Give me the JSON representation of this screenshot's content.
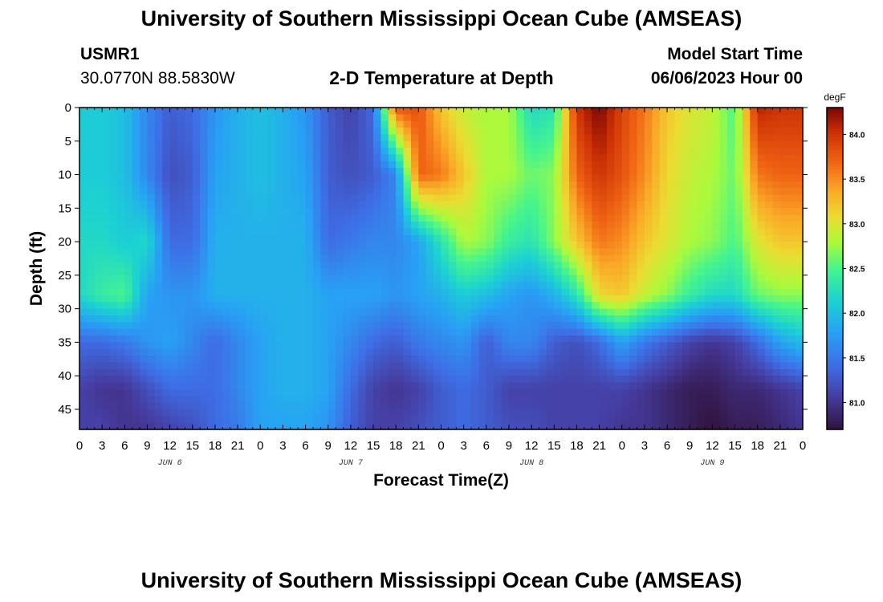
{
  "page_title": "University of Southern Mississippi Ocean Cube (AMSEAS)",
  "station": {
    "id": "USMR1",
    "coords": "30.0770N  88.5830W"
  },
  "model_start": {
    "label": "Model Start Time",
    "value": "06/06/2023 Hour 00"
  },
  "footer_title": "University of Southern Mississippi Ocean Cube (AMSEAS)",
  "chart_data": {
    "type": "heatmap",
    "title": "2-D Temperature at Depth",
    "xlabel": "Forecast Time(Z)",
    "ylabel": "Depth (ft)",
    "x_unit": "hours since model start",
    "xlim": [
      0,
      96
    ],
    "ylim": [
      0,
      48
    ],
    "y_inverted": true,
    "x_tick_values": [
      0,
      3,
      6,
      9,
      12,
      15,
      18,
      21,
      24,
      27,
      30,
      33,
      36,
      39,
      42,
      45,
      48,
      51,
      54,
      57,
      60,
      63,
      66,
      69,
      72,
      75,
      78,
      81,
      84,
      87,
      90,
      93,
      96
    ],
    "x_tick_labels": [
      "0",
      "3",
      "6",
      "9",
      "12",
      "15",
      "18",
      "21",
      "0",
      "3",
      "6",
      "9",
      "12",
      "15",
      "18",
      "21",
      "0",
      "3",
      "6",
      "9",
      "12",
      "15",
      "18",
      "21",
      "0",
      "3",
      "6",
      "9",
      "12",
      "15",
      "18",
      "21",
      "0"
    ],
    "date_labels": [
      {
        "text": "JUN 6",
        "x": 12
      },
      {
        "text": "JUN 7",
        "x": 36
      },
      {
        "text": "JUN 8",
        "x": 60
      },
      {
        "text": "JUN 9",
        "x": 84
      }
    ],
    "y_tick_values": [
      0,
      5,
      10,
      15,
      20,
      25,
      30,
      35,
      40,
      45
    ],
    "y_tick_labels": [
      "0",
      "5",
      "10",
      "15",
      "20",
      "25",
      "30",
      "35",
      "40",
      "45"
    ],
    "colorbar": {
      "label": "degF",
      "min": 80.7,
      "max": 84.3,
      "tick_values": [
        81.0,
        81.5,
        82.0,
        82.5,
        83.0,
        83.5,
        84.0
      ],
      "tick_labels": [
        "81.0",
        "81.5",
        "82.0",
        "82.5",
        "83.0",
        "83.5",
        "84.0"
      ]
    },
    "depth_levels_ft": [
      0,
      10,
      20,
      28,
      35,
      42,
      48
    ],
    "time_hours": [
      0,
      3,
      6,
      9,
      12,
      15,
      18,
      21,
      24,
      27,
      30,
      33,
      36,
      39,
      42,
      45,
      48,
      51,
      54,
      57,
      60,
      63,
      66,
      69,
      72,
      75,
      78,
      81,
      84,
      87,
      90,
      93,
      96
    ],
    "temperature_degF": [
      [
        82.1,
        82.1,
        82.0,
        81.6,
        81.3,
        81.4,
        81.7,
        81.9,
        82.0,
        81.9,
        81.7,
        81.3,
        81.1,
        81.4,
        83.8,
        83.8,
        83.2,
        82.9,
        82.8,
        82.8,
        82.2,
        82.3,
        84.0,
        84.3,
        83.9,
        83.6,
        83.2,
        83.0,
        82.9,
        82.5,
        84.1,
        84.0,
        84.0
      ],
      [
        82.1,
        82.1,
        82.0,
        81.6,
        81.2,
        81.3,
        81.8,
        81.9,
        82.0,
        81.9,
        81.8,
        81.3,
        81.2,
        81.3,
        81.6,
        83.7,
        83.6,
        83.2,
        82.8,
        82.8,
        82.6,
        82.7,
        83.7,
        84.0,
        83.8,
        83.5,
        83.1,
        82.9,
        82.8,
        82.6,
        83.6,
        83.7,
        83.7
      ],
      [
        82.2,
        82.2,
        82.1,
        82.2,
        81.4,
        81.4,
        81.9,
        81.9,
        81.9,
        81.9,
        81.9,
        81.4,
        81.5,
        81.6,
        81.6,
        81.8,
        82.3,
        82.8,
        82.7,
        82.4,
        82.3,
        82.7,
        83.2,
        83.6,
        83.5,
        83.2,
        83.0,
        82.8,
        82.7,
        82.5,
        83.0,
        83.2,
        83.2
      ],
      [
        82.2,
        82.4,
        82.5,
        81.8,
        81.7,
        81.7,
        81.9,
        81.9,
        81.9,
        81.9,
        81.9,
        81.8,
        81.8,
        81.8,
        81.7,
        81.8,
        81.9,
        82.1,
        82.0,
        81.8,
        81.7,
        81.9,
        82.3,
        83.1,
        83.2,
        82.9,
        82.7,
        82.4,
        82.2,
        82.2,
        82.6,
        82.7,
        82.7
      ],
      [
        81.4,
        81.4,
        81.5,
        81.7,
        81.8,
        81.6,
        81.4,
        81.6,
        81.8,
        81.9,
        81.9,
        81.8,
        81.6,
        81.4,
        81.3,
        81.5,
        81.6,
        81.7,
        81.3,
        81.6,
        81.6,
        81.3,
        81.2,
        81.4,
        81.8,
        81.5,
        81.3,
        81.1,
        81.0,
        81.1,
        81.4,
        81.8,
        82.0
      ],
      [
        81.1,
        81.0,
        81.0,
        81.2,
        81.4,
        81.4,
        81.4,
        81.6,
        81.8,
        81.9,
        81.9,
        81.8,
        81.4,
        81.1,
        81.0,
        81.1,
        81.3,
        81.4,
        81.3,
        81.1,
        81.1,
        81.1,
        81.1,
        81.1,
        81.1,
        81.0,
        80.9,
        80.8,
        80.8,
        80.9,
        80.9,
        81.0,
        81.1
      ],
      [
        81.1,
        81.1,
        81.0,
        81.0,
        81.1,
        81.2,
        81.4,
        81.5,
        81.8,
        81.8,
        81.8,
        81.7,
        81.3,
        81.1,
        81.1,
        81.2,
        81.3,
        81.4,
        81.3,
        81.2,
        81.2,
        81.1,
        81.1,
        81.1,
        81.0,
        81.0,
        80.9,
        80.8,
        80.7,
        80.8,
        80.8,
        80.9,
        81.0
      ]
    ]
  }
}
